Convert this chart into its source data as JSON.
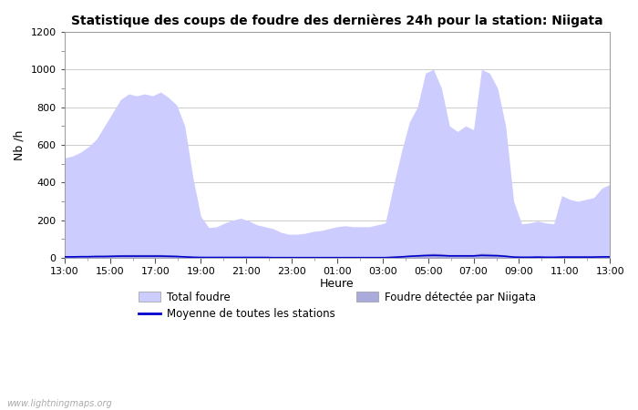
{
  "title": "Statistique des coups de foudre des dernières 24h pour la station: Niigata",
  "ylabel": "Nb /h",
  "xlabel": "Heure",
  "watermark": "www.lightningmaps.org",
  "ylim": [
    0,
    1200
  ],
  "yticks": [
    0,
    200,
    400,
    600,
    800,
    1000,
    1200
  ],
  "xtick_labels": [
    "13:00",
    "15:00",
    "17:00",
    "19:00",
    "21:00",
    "23:00",
    "01:00",
    "03:00",
    "05:00",
    "07:00",
    "09:00",
    "11:00",
    "13:00"
  ],
  "legend_labels": [
    "Total foudre",
    "Moyenne de toutes les stations",
    "Foudre détectée par Niigata"
  ],
  "color_total": "#ccccff",
  "color_niigata": "#aaaadd",
  "color_moyenne": "#0000cc",
  "background_color": "#ffffff",
  "total_foudre": [
    530,
    540,
    560,
    590,
    630,
    700,
    770,
    840,
    870,
    860,
    870,
    860,
    880,
    850,
    810,
    700,
    430,
    220,
    160,
    165,
    185,
    200,
    210,
    195,
    175,
    165,
    155,
    135,
    125,
    125,
    130,
    140,
    145,
    155,
    165,
    170,
    165,
    165,
    165,
    175,
    185,
    380,
    560,
    720,
    800,
    980,
    1000,
    900,
    700,
    670,
    700,
    680,
    1000,
    980,
    900,
    700,
    300,
    180,
    185,
    195,
    185,
    180,
    330,
    310,
    300,
    310,
    320,
    370,
    390
  ],
  "niigata": [
    10,
    10,
    12,
    13,
    14,
    15,
    16,
    17,
    18,
    18,
    18,
    18,
    18,
    16,
    14,
    10,
    7,
    5,
    4,
    4,
    4,
    4,
    4,
    3,
    3,
    3,
    3,
    2,
    2,
    2,
    2,
    2,
    2,
    2,
    2,
    2,
    2,
    2,
    2,
    2,
    2,
    5,
    10,
    15,
    18,
    22,
    25,
    22,
    18,
    18,
    18,
    18,
    25,
    23,
    20,
    15,
    7,
    5,
    6,
    7,
    6,
    5,
    8,
    8,
    7,
    8,
    8,
    10,
    10
  ],
  "moyenne": [
    5,
    5,
    6,
    6,
    7,
    7,
    8,
    9,
    9,
    9,
    9,
    9,
    9,
    8,
    7,
    5,
    3,
    2,
    2,
    2,
    2,
    2,
    2,
    2,
    2,
    2,
    1,
    1,
    1,
    1,
    1,
    1,
    1,
    1,
    1,
    1,
    1,
    1,
    1,
    1,
    1,
    3,
    5,
    8,
    10,
    12,
    13,
    12,
    10,
    10,
    10,
    10,
    13,
    12,
    11,
    8,
    4,
    3,
    3,
    4,
    3,
    3,
    4,
    4,
    4,
    4,
    4,
    5,
    5
  ]
}
